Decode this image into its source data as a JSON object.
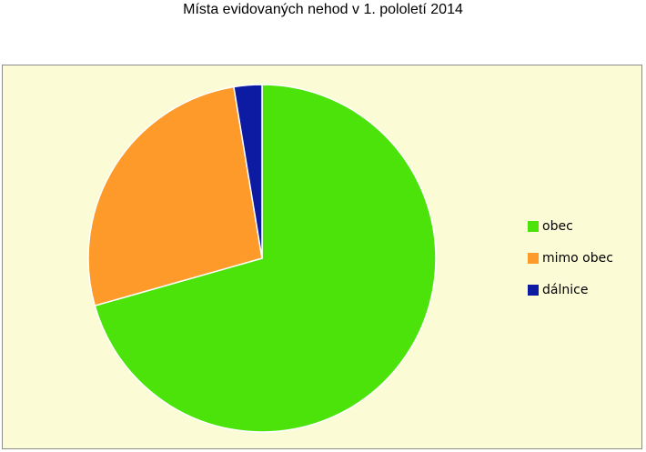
{
  "chart_data": {
    "type": "pie",
    "title": "Místa evidovaných nehod v 1. pololetí 2014",
    "categories": [
      "obec",
      "mimo obec",
      "dálnice"
    ],
    "values": [
      70.6,
      26.8,
      2.6
    ],
    "colors": [
      "#4ce30a",
      "#fd9a2a",
      "#0c1ba1"
    ],
    "legend_position": "right"
  }
}
